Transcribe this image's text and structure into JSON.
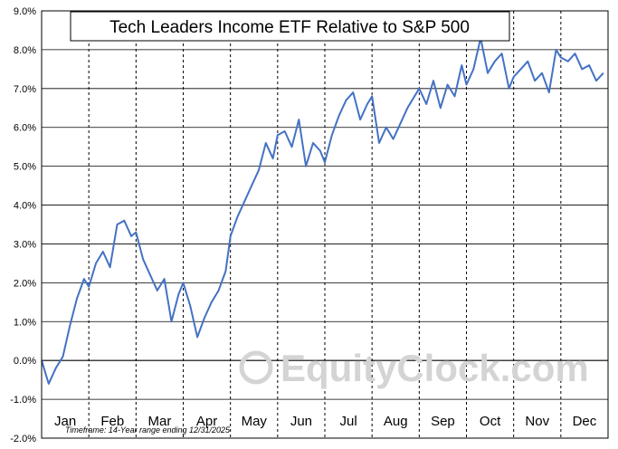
{
  "chart_data": {
    "type": "line",
    "title": "Tech Leaders Income ETF Relative to S&P 500",
    "xlabel": "",
    "ylabel": "",
    "ylim": [
      -2,
      9
    ],
    "yticks": [
      "-2.0%",
      "-1.0%",
      "0.0%",
      "1.0%",
      "2.0%",
      "3.0%",
      "4.0%",
      "5.0%",
      "6.0%",
      "7.0%",
      "8.0%",
      "9.0%"
    ],
    "months": [
      "Jan",
      "Feb",
      "Mar",
      "Apr",
      "May",
      "Jun",
      "Jul",
      "Aug",
      "Sep",
      "Oct",
      "Nov",
      "Dec"
    ],
    "grid": true,
    "line_color": "#4472c4",
    "series": [
      {
        "x": [
          0,
          0.15,
          0.3,
          0.45,
          0.6,
          0.75,
          0.9,
          1.0,
          1.15,
          1.3,
          1.45,
          1.6,
          1.75,
          1.9,
          2.0,
          2.15,
          2.3,
          2.45,
          2.6,
          2.75,
          2.9,
          3.0,
          3.15,
          3.3,
          3.45,
          3.6,
          3.75,
          3.9,
          4.0,
          4.15,
          4.3,
          4.45,
          4.6,
          4.75,
          4.9,
          5.0,
          5.15,
          5.3,
          5.45,
          5.6,
          5.75,
          5.9,
          6.0,
          6.15,
          6.3,
          6.45,
          6.6,
          6.75,
          6.9,
          7.0,
          7.15,
          7.3,
          7.45,
          7.6,
          7.75,
          7.9,
          8.0,
          8.15,
          8.3,
          8.45,
          8.6,
          8.75,
          8.9,
          9.0,
          9.15,
          9.3,
          9.45,
          9.6,
          9.75,
          9.9,
          10.0,
          10.15,
          10.3,
          10.45,
          10.6,
          10.75,
          10.9,
          11.0,
          11.15,
          11.3,
          11.45,
          11.6,
          11.75,
          11.9
        ],
        "values": [
          0.0,
          -0.6,
          -0.2,
          0.1,
          0.9,
          1.6,
          2.1,
          1.9,
          2.5,
          2.8,
          2.4,
          3.5,
          3.6,
          3.2,
          3.3,
          2.6,
          2.2,
          1.8,
          2.1,
          1.0,
          1.7,
          2.0,
          1.4,
          0.6,
          1.1,
          1.5,
          1.8,
          2.3,
          3.2,
          3.7,
          4.1,
          4.5,
          4.9,
          5.6,
          5.2,
          5.8,
          5.9,
          5.5,
          6.2,
          5.0,
          5.6,
          5.4,
          5.1,
          5.8,
          6.3,
          6.7,
          6.9,
          6.2,
          6.6,
          6.8,
          5.6,
          6.0,
          5.7,
          6.1,
          6.5,
          6.8,
          7.0,
          6.6,
          7.2,
          6.5,
          7.1,
          6.8,
          7.6,
          7.1,
          7.5,
          8.3,
          7.4,
          7.7,
          7.9,
          7.0,
          7.3,
          7.5,
          7.7,
          7.2,
          7.4,
          6.9,
          8.0,
          7.8,
          7.7,
          7.9,
          7.5,
          7.6,
          7.2,
          7.4
        ]
      }
    ]
  },
  "watermark_text": "EquityClock.com",
  "footnote": "Timeframe: 14-Year range ending 12/31/2025"
}
